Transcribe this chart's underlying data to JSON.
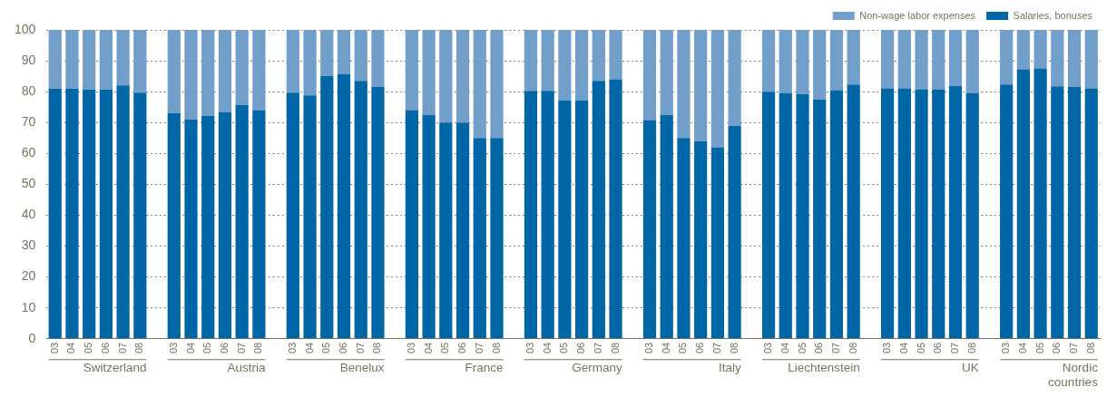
{
  "chart_data": {
    "type": "bar",
    "stacked": true,
    "categories": [
      "03",
      "04",
      "05",
      "06",
      "07",
      "08",
      null,
      "03",
      "04",
      "05",
      "06",
      "07",
      "08",
      null,
      "03",
      "04",
      "05",
      "06",
      "07",
      "08",
      null,
      "03",
      "04",
      "05",
      "06",
      "07",
      "08",
      null,
      "03",
      "04",
      "05",
      "06",
      "07",
      "08",
      null,
      "03",
      "04",
      "05",
      "06",
      "07",
      "08",
      null,
      "03",
      "04",
      "05",
      "06",
      "07",
      "08",
      null,
      "03",
      "04",
      "05",
      "06",
      "07",
      "08",
      null,
      "03",
      "04",
      "05",
      "06",
      "07",
      "08"
    ],
    "series": [
      {
        "name": "Salaries, bonuses",
        "color": "#0066a6",
        "values": [
          81,
          81,
          80.7,
          80.7,
          82,
          79.7,
          null,
          73,
          71,
          72.2,
          73.3,
          75.7,
          74,
          null,
          79.7,
          78.8,
          85,
          85.7,
          83.5,
          81.5,
          null,
          74,
          72.5,
          70,
          70,
          65,
          65,
          null,
          80.3,
          80.3,
          77.2,
          77.2,
          83.5,
          84,
          null,
          70.8,
          72.5,
          65,
          64,
          62,
          69,
          null,
          80,
          79.5,
          79.2,
          77.4,
          80.5,
          82.3,
          null,
          81.1,
          81.1,
          80.8,
          80.8,
          81.9,
          79.6,
          null,
          82.3,
          87.2,
          87.5,
          81.7,
          81.5,
          81.1
        ]
      },
      {
        "name": "Non-wage labor expenses",
        "color": "#729fca",
        "values": [
          19,
          19,
          19.3,
          19.3,
          18,
          20.3,
          null,
          27,
          29,
          27.8,
          26.7,
          24.3,
          26,
          null,
          20.3,
          21.2,
          15,
          14.3,
          16.5,
          18.5,
          null,
          26,
          27.5,
          30,
          30,
          35,
          35,
          null,
          19.7,
          19.7,
          22.8,
          22.8,
          16.5,
          16,
          null,
          29.2,
          27.5,
          35,
          36,
          38,
          31,
          null,
          20,
          20.5,
          20.8,
          22.6,
          19.5,
          17.7,
          null,
          18.9,
          18.9,
          19.2,
          19.2,
          18.1,
          20.4,
          null,
          17.7,
          12.8,
          12.5,
          18.3,
          18.5,
          18.9
        ]
      }
    ],
    "ylim": [
      0,
      100
    ],
    "yticks": [
      0,
      10,
      20,
      30,
      40,
      50,
      60,
      70,
      80,
      90,
      100
    ],
    "grid": "y",
    "legend": "top right",
    "annotations": [
      "Switzerland",
      "Austria",
      "Benelux",
      "France",
      "Germany",
      "Italy",
      "Liechtenstein",
      "UK",
      "Nordic\ncountries"
    ]
  }
}
